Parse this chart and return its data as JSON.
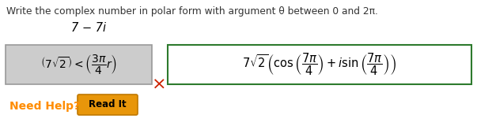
{
  "instruction": "Write the complex number in polar form with argument θ between 0 and 2π.",
  "given": "7 − 7i",
  "need_help_text": "Need Help?",
  "read_it_text": "Read It",
  "bg_color": "#ffffff",
  "instruction_color": "#333333",
  "given_color": "#000000",
  "box1_bg": "#cccccc",
  "box1_border": "#999999",
  "box2_border": "#2d7a2d",
  "cross_color": "#cc2200",
  "need_help_color": "#ff8c00",
  "read_it_bg": "#e8960a",
  "read_it_border": "#c07800",
  "read_it_text_color": "#000000",
  "figw": 6.03,
  "figh": 1.6,
  "dpi": 100
}
